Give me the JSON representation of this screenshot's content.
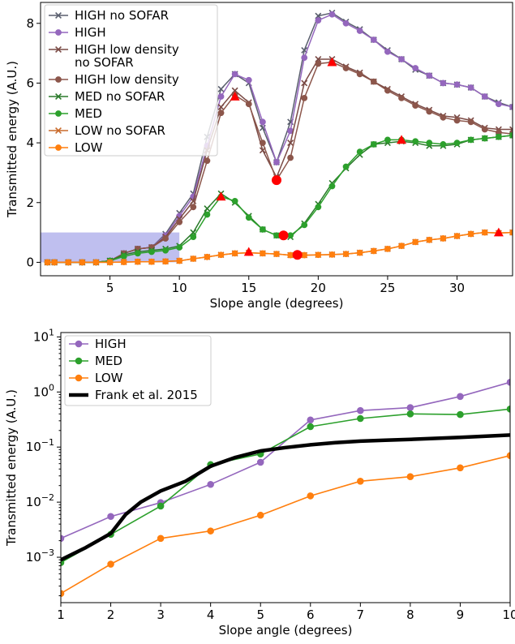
{
  "colors": {
    "high": "#9467bd",
    "high_low_density": "#8c564b",
    "med": "#2ca02c",
    "low": "#ff7f0e",
    "frank": "#000000",
    "high_no_sofar": "#5a5f6e",
    "high_low_density_no_sofar": "#7a4a45",
    "med_no_sofar": "#2a7a2a",
    "low_no_sofar": "#c96a2b",
    "marker_red": "#ff0000",
    "shade": "#8080e0"
  },
  "chart_data": [
    {
      "type": "line",
      "title": "",
      "xlabel": "Slope angle (degrees)",
      "ylabel": "Transmitted energy (A.U.)",
      "xlim": [
        0,
        34
      ],
      "ylim": [
        -0.45,
        8.7
      ],
      "xticks": [
        5,
        10,
        15,
        20,
        25,
        30
      ],
      "yticks": [
        0,
        2,
        4,
        6,
        8
      ],
      "grid": false,
      "legend_position": "upper left",
      "shaded_region": {
        "x": [
          0,
          10
        ],
        "y": [
          0,
          1
        ]
      },
      "x": [
        0.5,
        1,
        2,
        3,
        4,
        5,
        6,
        7,
        8,
        9,
        10,
        11,
        12,
        13,
        14,
        15,
        16,
        17,
        18,
        19,
        20,
        21,
        22,
        23,
        24,
        25,
        26,
        27,
        28,
        29,
        30,
        31,
        32,
        33,
        34
      ],
      "series": [
        {
          "name": "HIGH no SOFAR",
          "key": "high_no_sofar",
          "marker": "x",
          "values": [
            0,
            0,
            0,
            0,
            0,
            0.05,
            0.3,
            0.45,
            0.5,
            0.95,
            1.65,
            2.3,
            4.2,
            5.8,
            6.3,
            6.0,
            4.5,
            3.35,
            4.7,
            7.1,
            8.25,
            8.35,
            8.05,
            7.8,
            7.45,
            7.1,
            6.8,
            6.45,
            6.25,
            6.0,
            5.95,
            5.85,
            5.55,
            5.35,
            5.2
          ]
        },
        {
          "name": "HIGH",
          "key": "high",
          "marker": "o",
          "values": [
            0,
            0,
            0,
            0,
            0,
            0.05,
            0.3,
            0.45,
            0.5,
            0.9,
            1.55,
            2.2,
            3.9,
            5.55,
            6.3,
            6.1,
            4.7,
            3.35,
            4.4,
            6.85,
            8.1,
            8.3,
            8.0,
            7.75,
            7.45,
            7.05,
            6.8,
            6.5,
            6.25,
            6.0,
            5.95,
            5.85,
            5.55,
            5.3,
            5.2
          ]
        },
        {
          "name": "HIGH low density\nno SOFAR",
          "key": "high_low_density_no_sofar",
          "marker": "x",
          "values": [
            0,
            0,
            0,
            0,
            0,
            0.05,
            0.3,
            0.45,
            0.5,
            0.85,
            1.45,
            2.05,
            3.75,
            5.2,
            5.75,
            5.35,
            3.75,
            2.85,
            4.0,
            6.0,
            6.8,
            6.8,
            6.55,
            6.35,
            6.05,
            5.8,
            5.55,
            5.3,
            5.1,
            4.9,
            4.85,
            4.75,
            4.5,
            4.45,
            4.45
          ]
        },
        {
          "name": "HIGH low density",
          "key": "high_low_density",
          "marker": "o",
          "values": [
            0,
            0,
            0,
            0,
            0,
            0.05,
            0.3,
            0.45,
            0.5,
            0.8,
            1.35,
            1.85,
            3.4,
            5.0,
            5.6,
            5.3,
            4.0,
            2.75,
            3.5,
            5.5,
            6.65,
            6.7,
            6.5,
            6.3,
            6.05,
            5.75,
            5.5,
            5.25,
            5.05,
            4.85,
            4.75,
            4.7,
            4.45,
            4.35,
            4.3
          ]
        },
        {
          "name": "MED no SOFAR",
          "key": "med_no_sofar",
          "marker": "x",
          "values": [
            0,
            0,
            0,
            0,
            0,
            0.05,
            0.25,
            0.35,
            0.4,
            0.45,
            0.55,
            1.0,
            1.8,
            2.3,
            2.0,
            1.55,
            1.1,
            0.9,
            0.85,
            1.3,
            1.95,
            2.65,
            3.15,
            3.6,
            3.95,
            4.0,
            4.05,
            4.0,
            3.9,
            3.9,
            3.95,
            4.1,
            4.15,
            4.2,
            4.25
          ]
        },
        {
          "name": "MED",
          "key": "med",
          "marker": "o",
          "values": [
            0,
            0,
            0,
            0,
            0,
            0.05,
            0.2,
            0.3,
            0.35,
            0.4,
            0.5,
            0.85,
            1.6,
            2.2,
            2.05,
            1.5,
            1.1,
            0.9,
            0.9,
            1.25,
            1.85,
            2.55,
            3.2,
            3.7,
            3.95,
            4.1,
            4.1,
            4.05,
            4.0,
            3.95,
            4.0,
            4.1,
            4.15,
            4.2,
            4.25
          ]
        },
        {
          "name": "LOW no SOFAR",
          "key": "low_no_sofar",
          "marker": "x",
          "values": [
            0,
            0,
            0,
            0,
            0,
            0,
            0.01,
            0.02,
            0.02,
            0.03,
            0.05,
            0.12,
            0.18,
            0.25,
            0.3,
            0.32,
            0.3,
            0.28,
            0.24,
            0.24,
            0.25,
            0.26,
            0.28,
            0.32,
            0.38,
            0.45,
            0.55,
            0.68,
            0.75,
            0.8,
            0.88,
            0.95,
            1.0,
            0.98,
            1.0
          ]
        },
        {
          "name": "LOW",
          "key": "low",
          "marker": "o",
          "values": [
            0,
            0,
            0,
            0,
            0,
            0,
            0.01,
            0.02,
            0.02,
            0.03,
            0.05,
            0.12,
            0.18,
            0.25,
            0.3,
            0.32,
            0.3,
            0.28,
            0.24,
            0.24,
            0.25,
            0.26,
            0.28,
            0.32,
            0.38,
            0.45,
            0.55,
            0.68,
            0.75,
            0.8,
            0.88,
            0.95,
            1.0,
            0.98,
            1.0
          ]
        }
      ],
      "red_triangles": [
        {
          "x": 14,
          "y": 5.55
        },
        {
          "x": 21,
          "y": 6.7
        },
        {
          "x": 13,
          "y": 2.2
        },
        {
          "x": 26,
          "y": 4.1
        },
        {
          "x": 15,
          "y": 0.35
        },
        {
          "x": 33,
          "y": 1.0
        }
      ],
      "red_circles": [
        {
          "x": 17,
          "y": 2.75
        },
        {
          "x": 17.5,
          "y": 0.9
        },
        {
          "x": 18.5,
          "y": 0.25
        }
      ]
    },
    {
      "type": "line",
      "title": "",
      "xlabel": "Slope angle (degrees)",
      "ylabel": "Transmitted energy (A.U.)",
      "xlim": [
        1,
        10
      ],
      "ylim": [
        0.00015,
        12
      ],
      "yscale": "log",
      "xticks": [
        1,
        2,
        3,
        4,
        5,
        6,
        7,
        8,
        9,
        10
      ],
      "xticklabels": [
        "1",
        "2",
        "3",
        "4",
        "5",
        "6",
        "7",
        "8",
        "9",
        "10"
      ],
      "yticks": [
        0.001,
        0.01,
        0.1,
        1,
        10
      ],
      "yticklabels": [
        [
          "10",
          "−3"
        ],
        [
          "10",
          "−2"
        ],
        [
          "10",
          "−1"
        ],
        [
          "10",
          "0"
        ],
        [
          "10",
          "1"
        ]
      ],
      "grid": false,
      "legend_position": "upper left",
      "x": [
        1,
        2,
        3,
        4,
        5,
        6,
        7,
        8,
        9,
        10
      ],
      "series": [
        {
          "name": "HIGH",
          "key": "high",
          "marker": "o",
          "values": [
            0.0022,
            0.0055,
            0.0098,
            0.021,
            0.053,
            0.31,
            0.46,
            0.52,
            0.83,
            1.5
          ]
        },
        {
          "name": "MED",
          "key": "med",
          "marker": "o",
          "values": [
            0.0008,
            0.0026,
            0.0085,
            0.048,
            0.075,
            0.235,
            0.33,
            0.4,
            0.39,
            0.49
          ]
        },
        {
          "name": "LOW",
          "key": "low",
          "marker": "o",
          "values": [
            0.00022,
            0.00075,
            0.0022,
            0.003,
            0.0058,
            0.013,
            0.024,
            0.029,
            0.042,
            0.07
          ]
        },
        {
          "name": "Frank et al. 2015",
          "key": "frank",
          "marker": "",
          "x": [
            1,
            1.5,
            2,
            2.3,
            2.6,
            3,
            3.5,
            4,
            4.5,
            5,
            5.5,
            6,
            6.5,
            7,
            7.5,
            8,
            9,
            10
          ],
          "values": [
            0.0009,
            0.0015,
            0.0027,
            0.006,
            0.01,
            0.016,
            0.024,
            0.045,
            0.065,
            0.085,
            0.098,
            0.11,
            0.12,
            0.128,
            0.133,
            0.138,
            0.15,
            0.165
          ]
        }
      ]
    }
  ]
}
